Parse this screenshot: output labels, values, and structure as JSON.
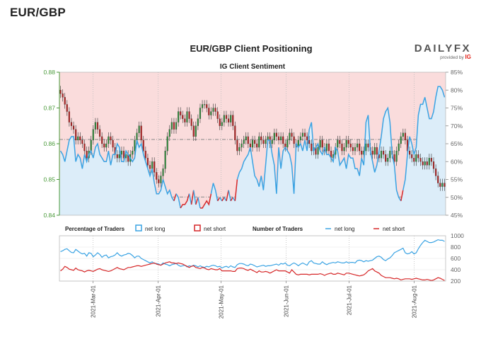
{
  "page_heading": "EUR/GBP",
  "logo": {
    "main": "DAILY",
    "fx": "FX",
    "sub": "provided by",
    "brand": "IG"
  },
  "colors": {
    "bull_candle": "#2e8b3a",
    "bear_candle": "#b22222",
    "wick": "#333333",
    "net_long": "#3aa3e3",
    "net_short": "#d62728",
    "long_fill": "#dcedf9",
    "short_fill": "#fadcdc",
    "axis_green": "#4a9a3a",
    "axis_gray": "#666666"
  },
  "chart_data": [
    {
      "type": "candlestick",
      "title": "EUR/GBP Client Positioning",
      "subtitle": "IG Client Sentiment",
      "y_left": {
        "min": 0.84,
        "max": 0.88,
        "ticks": [
          "0.84",
          "0.85",
          "0.86",
          "0.87",
          "0.88"
        ]
      },
      "y_right": {
        "min": 45,
        "max": 85,
        "ticks": [
          "45%",
          "50%",
          "55%",
          "60%",
          "65%",
          "70%",
          "75%",
          "80%",
          "85%"
        ]
      },
      "x_ticks": [
        "2021-Mar-01",
        "2021-Apr-01",
        "2021-May-01",
        "2021-Jun-01",
        "2021-Jul-01",
        "2021-Aug-01"
      ],
      "x_tick_days": [
        16,
        47,
        77,
        108,
        138,
        169
      ],
      "x_range_days": [
        0,
        184
      ],
      "reference_lines": [
        0.8451,
        0.8612
      ],
      "close": [
        0.874,
        0.873,
        0.871,
        0.869,
        0.866,
        0.865,
        0.864,
        0.861,
        0.862,
        0.861,
        0.86,
        0.858,
        0.856,
        0.858,
        0.861,
        0.864,
        0.866,
        0.864,
        0.862,
        0.86,
        0.859,
        0.86,
        0.862,
        0.861,
        0.859,
        0.857,
        0.856,
        0.857,
        0.858,
        0.856,
        0.857,
        0.855,
        0.857,
        0.858,
        0.861,
        0.863,
        0.865,
        0.861,
        0.858,
        0.856,
        0.854,
        0.853,
        0.855,
        0.852,
        0.85,
        0.849,
        0.851,
        0.853,
        0.858,
        0.862,
        0.864,
        0.866,
        0.864,
        0.866,
        0.869,
        0.868,
        0.867,
        0.866,
        0.869,
        0.867,
        0.865,
        0.862,
        0.865,
        0.867,
        0.87,
        0.871,
        0.871,
        0.87,
        0.868,
        0.869,
        0.87,
        0.869,
        0.867,
        0.865,
        0.866,
        0.868,
        0.867,
        0.866,
        0.868,
        0.865,
        0.861,
        0.858,
        0.859,
        0.86,
        0.861,
        0.862,
        0.86,
        0.859,
        0.861,
        0.86,
        0.859,
        0.862,
        0.861,
        0.86,
        0.861,
        0.862,
        0.86,
        0.861,
        0.863,
        0.862,
        0.861,
        0.862,
        0.86,
        0.859,
        0.861,
        0.863,
        0.862,
        0.86,
        0.859,
        0.861,
        0.862,
        0.863,
        0.862,
        0.861,
        0.86,
        0.858,
        0.859,
        0.857,
        0.859,
        0.861,
        0.859,
        0.858,
        0.86,
        0.858,
        0.856,
        0.857,
        0.859,
        0.861,
        0.86,
        0.858,
        0.859,
        0.861,
        0.86,
        0.859,
        0.858,
        0.859,
        0.86,
        0.858,
        0.857,
        0.858,
        0.86,
        0.859,
        0.858,
        0.857,
        0.859,
        0.857,
        0.856,
        0.858,
        0.857,
        0.855,
        0.856,
        0.858,
        0.857,
        0.855,
        0.858,
        0.86,
        0.862,
        0.863,
        0.861,
        0.858,
        0.857,
        0.856,
        0.855,
        0.857,
        0.856,
        0.855,
        0.854,
        0.855,
        0.854,
        0.856,
        0.855,
        0.853,
        0.851,
        0.849,
        0.848,
        0.849,
        0.848
      ],
      "net_long_pct": [
        63,
        62,
        60,
        63,
        66,
        67,
        67,
        60,
        62,
        61,
        58,
        62,
        60,
        62,
        63,
        61,
        64,
        65,
        62,
        61,
        60,
        60,
        63,
        59,
        62,
        62,
        65,
        64,
        60,
        60,
        63,
        62,
        61,
        60,
        61,
        66,
        64,
        65,
        62,
        60,
        58,
        56,
        58,
        54,
        51,
        51,
        52,
        55,
        53,
        51,
        52,
        50,
        49,
        51,
        50,
        47,
        48,
        48,
        49,
        51,
        48,
        52,
        48,
        50,
        47,
        47,
        48,
        49,
        48,
        51,
        54,
        52,
        49,
        50,
        49,
        50,
        49,
        52,
        49,
        50,
        49,
        55,
        57,
        58,
        60,
        61,
        62,
        64,
        60,
        56,
        55,
        53,
        56,
        52,
        59,
        66,
        66,
        62,
        59,
        51,
        64,
        58,
        63,
        64,
        63,
        62,
        59,
        51,
        65,
        64,
        65,
        63,
        66,
        63,
        69,
        71,
        63,
        64,
        65,
        63,
        62,
        64,
        62,
        62,
        61,
        60,
        64,
        63,
        59,
        60,
        61,
        58,
        62,
        61,
        61,
        58,
        58,
        56,
        61,
        59,
        71,
        73,
        63,
        60,
        57,
        59,
        63,
        67,
        72,
        74,
        75,
        71,
        62,
        59,
        52,
        50,
        49,
        52,
        55,
        62,
        67,
        65,
        62,
        64,
        73,
        76,
        76,
        78,
        75,
        72,
        72,
        74,
        78,
        81,
        81,
        80,
        78
      ],
      "net_short_from_index": 44
    },
    {
      "type": "line",
      "y": {
        "min": 200,
        "max": 1000,
        "ticks": [
          "200",
          "400",
          "600",
          "800",
          "1000"
        ]
      },
      "series": [
        {
          "name": "net long",
          "values": [
            720,
            735,
            760,
            770,
            735,
            705,
            700,
            760,
            730,
            700,
            680,
            690,
            640,
            700,
            690,
            630,
            660,
            700,
            670,
            620,
            650,
            660,
            610,
            630,
            640,
            660,
            700,
            660,
            640,
            660,
            670,
            690,
            680,
            650,
            610,
            640,
            640,
            600,
            580,
            560,
            540,
            520,
            540,
            510,
            510,
            500,
            480,
            520,
            500,
            490,
            470,
            490,
            500,
            510,
            480,
            460,
            470,
            480,
            450,
            470,
            460,
            480,
            470,
            450,
            470,
            450,
            440,
            460,
            450,
            470,
            480,
            470,
            450,
            460,
            430,
            450,
            460,
            440,
            470,
            450,
            440,
            490,
            510,
            510,
            500,
            480,
            470,
            500,
            490,
            470,
            450,
            460,
            470,
            480,
            460,
            470,
            470,
            480,
            490,
            500,
            480,
            510,
            500,
            520,
            480,
            470,
            500,
            520,
            500,
            470,
            500,
            520,
            500,
            480,
            540,
            560,
            520,
            510,
            500,
            500,
            540,
            510,
            490,
            510,
            520,
            530,
            520,
            540,
            530,
            520,
            520,
            540,
            520,
            530,
            530,
            520,
            560,
            570,
            560,
            540,
            560,
            550,
            560,
            570,
            600,
            630,
            640,
            620,
            580,
            560,
            590,
            610,
            650,
            700,
            720,
            740,
            760,
            780,
            700,
            680,
            690,
            720,
            680,
            700,
            770,
            830,
            880,
            920,
            900,
            880,
            880,
            890,
            910,
            930,
            920,
            920,
            900
          ]
        },
        {
          "name": "net short",
          "values": [
            380,
            410,
            460,
            440,
            410,
            400,
            390,
            430,
            400,
            390,
            380,
            360,
            380,
            390,
            380,
            370,
            390,
            410,
            420,
            400,
            390,
            380,
            370,
            380,
            400,
            420,
            440,
            420,
            410,
            400,
            420,
            440,
            440,
            450,
            460,
            470,
            470,
            460,
            470,
            480,
            490,
            500,
            510,
            520,
            500,
            490,
            480,
            500,
            520,
            530,
            540,
            520,
            520,
            510,
            520,
            510,
            500,
            480,
            460,
            440,
            460,
            470,
            440,
            430,
            420,
            440,
            430,
            410,
            400,
            420,
            410,
            400,
            400,
            420,
            380,
            380,
            380,
            380,
            380,
            370,
            370,
            420,
            430,
            430,
            420,
            400,
            390,
            410,
            390,
            370,
            350,
            380,
            360,
            360,
            370,
            360,
            340,
            360,
            380,
            400,
            380,
            380,
            380,
            380,
            360,
            340,
            400,
            360,
            320,
            310,
            320,
            320,
            320,
            320,
            310,
            320,
            320,
            320,
            320,
            330,
            320,
            300,
            320,
            330,
            340,
            320,
            320,
            340,
            330,
            320,
            310,
            340,
            340,
            330,
            320,
            310,
            300,
            290,
            300,
            310,
            340,
            380,
            400,
            420,
            380,
            360,
            340,
            300,
            280,
            260,
            260,
            260,
            250,
            240,
            250,
            240,
            220,
            230,
            240,
            240,
            240,
            230,
            240,
            250,
            240,
            230,
            220,
            220,
            230,
            220,
            210,
            220,
            240,
            260,
            250,
            230,
            210
          ]
        }
      ]
    }
  ],
  "legend": {
    "pct_label": "Percentage of Traders",
    "pct_long": "net long",
    "pct_short": "net short",
    "num_label": "Number of Traders",
    "num_long": "net long",
    "num_short": "net short"
  }
}
